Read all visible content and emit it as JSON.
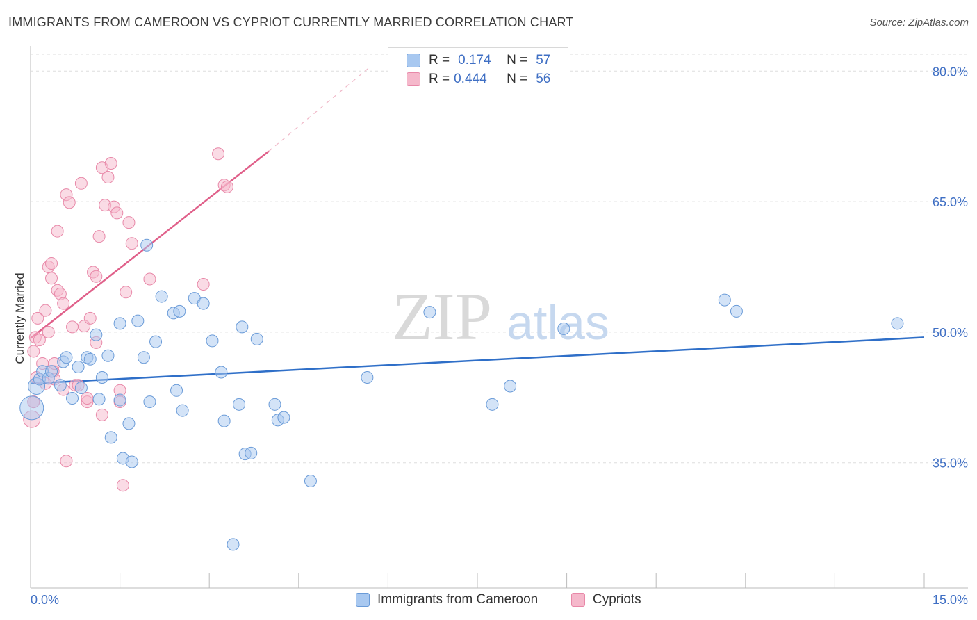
{
  "header": {
    "title": "IMMIGRANTS FROM CAMEROON VS CYPRIOT CURRENTLY MARRIED CORRELATION CHART",
    "source": "Source: ZipAtlas.com"
  },
  "watermark": {
    "zip": "ZIP",
    "atlas": "atlas"
  },
  "legend_top": {
    "rows": [
      {
        "r_label": "R =",
        "r_value": "0.174",
        "n_label": "N =",
        "n_value": "57",
        "color": "#a8c8f0"
      },
      {
        "r_label": "R =",
        "r_value": "0.444",
        "n_label": "N =",
        "n_value": "56",
        "color": "#f5b8cb"
      }
    ]
  },
  "legend_bottom": {
    "items": [
      {
        "label": "Immigrants from Cameroon",
        "color": "#a8c8f0"
      },
      {
        "label": "Cypriots",
        "color": "#f5b8cb"
      }
    ]
  },
  "colors": {
    "blue_fill": "#a8c8f0",
    "blue_stroke": "#6a9bd8",
    "blue_line": "#2f6fc8",
    "pink_fill": "#f5b8cb",
    "pink_stroke": "#e888a8",
    "pink_line": "#e0608a",
    "axis_label": "#3f6fc4",
    "grid": "#dddddd"
  },
  "chart_data": {
    "type": "scatter",
    "title": "IMMIGRANTS FROM CAMEROON VS CYPRIOT CURRENTLY MARRIED CORRELATION CHART",
    "xlabel": "",
    "ylabel": "Currently Married",
    "xlim": [
      0.0,
      15.0
    ],
    "ylim": [
      20.6,
      82.1
    ],
    "x_tick_labels": [
      "0.0%",
      "15.0%"
    ],
    "y_ticks": [
      35.0,
      50.0,
      65.0,
      80.0
    ],
    "y_tick_labels": [
      "35.0%",
      "50.0%",
      "65.0%",
      "80.0%"
    ],
    "grid": true,
    "series": [
      {
        "name": "Immigrants from Cameroon",
        "r": 0.174,
        "n": 57,
        "trend": {
          "x": [
            0.0,
            15.0
          ],
          "y": [
            44.1,
            49.4
          ]
        },
        "points": [
          {
            "x": 0.02,
            "y": 41.3,
            "s": "xl"
          },
          {
            "x": 0.1,
            "y": 43.8,
            "s": "l"
          },
          {
            "x": 0.15,
            "y": 44.6
          },
          {
            "x": 0.2,
            "y": 45.5
          },
          {
            "x": 0.3,
            "y": 44.7
          },
          {
            "x": 0.35,
            "y": 45.5
          },
          {
            "x": 0.5,
            "y": 43.9
          },
          {
            "x": 0.55,
            "y": 46.6
          },
          {
            "x": 0.6,
            "y": 47.1
          },
          {
            "x": 0.8,
            "y": 46.0
          },
          {
            "x": 0.85,
            "y": 43.6
          },
          {
            "x": 0.95,
            "y": 47.1
          },
          {
            "x": 1.0,
            "y": 46.9
          },
          {
            "x": 0.7,
            "y": 42.4
          },
          {
            "x": 1.1,
            "y": 49.7
          },
          {
            "x": 1.15,
            "y": 42.3
          },
          {
            "x": 1.2,
            "y": 44.8
          },
          {
            "x": 1.3,
            "y": 47.3
          },
          {
            "x": 1.35,
            "y": 37.9
          },
          {
            "x": 1.5,
            "y": 42.2
          },
          {
            "x": 1.5,
            "y": 51.0
          },
          {
            "x": 1.55,
            "y": 35.5
          },
          {
            "x": 1.65,
            "y": 39.5
          },
          {
            "x": 1.7,
            "y": 35.1
          },
          {
            "x": 1.8,
            "y": 51.3
          },
          {
            "x": 1.9,
            "y": 47.1
          },
          {
            "x": 1.95,
            "y": 60.0
          },
          {
            "x": 2.0,
            "y": 42.0
          },
          {
            "x": 2.1,
            "y": 48.9
          },
          {
            "x": 2.2,
            "y": 54.1
          },
          {
            "x": 2.4,
            "y": 52.2
          },
          {
            "x": 2.45,
            "y": 43.3
          },
          {
            "x": 2.5,
            "y": 52.4
          },
          {
            "x": 2.55,
            "y": 41.0
          },
          {
            "x": 2.75,
            "y": 53.9
          },
          {
            "x": 2.9,
            "y": 53.3
          },
          {
            "x": 3.05,
            "y": 49.0
          },
          {
            "x": 3.2,
            "y": 45.4
          },
          {
            "x": 3.25,
            "y": 39.8
          },
          {
            "x": 3.4,
            "y": 25.6
          },
          {
            "x": 3.5,
            "y": 41.7
          },
          {
            "x": 3.55,
            "y": 50.6
          },
          {
            "x": 3.6,
            "y": 36.0
          },
          {
            "x": 3.7,
            "y": 36.1
          },
          {
            "x": 3.8,
            "y": 49.2
          },
          {
            "x": 4.1,
            "y": 41.7
          },
          {
            "x": 4.15,
            "y": 39.9
          },
          {
            "x": 4.25,
            "y": 40.2
          },
          {
            "x": 4.7,
            "y": 32.9
          },
          {
            "x": 5.65,
            "y": 44.8
          },
          {
            "x": 6.7,
            "y": 52.3
          },
          {
            "x": 7.75,
            "y": 41.7
          },
          {
            "x": 8.05,
            "y": 43.8
          },
          {
            "x": 8.95,
            "y": 50.4
          },
          {
            "x": 11.65,
            "y": 53.7
          },
          {
            "x": 11.85,
            "y": 52.4
          },
          {
            "x": 14.55,
            "y": 51.0
          }
        ]
      },
      {
        "name": "Cypriots",
        "r": 0.444,
        "n": 56,
        "trend": {
          "x": [
            0.0,
            4.0
          ],
          "y": [
            49.3,
            70.8
          ]
        },
        "trend_ext": {
          "x": [
            4.0,
            5.7
          ],
          "y": [
            70.8,
            80.5
          ]
        },
        "points": [
          {
            "x": 0.02,
            "y": 40.0,
            "s": "l"
          },
          {
            "x": 0.05,
            "y": 42.0
          },
          {
            "x": 0.05,
            "y": 47.8
          },
          {
            "x": 0.08,
            "y": 49.4
          },
          {
            "x": 0.1,
            "y": 44.8
          },
          {
            "x": 0.12,
            "y": 51.6
          },
          {
            "x": 0.15,
            "y": 49.1
          },
          {
            "x": 0.2,
            "y": 46.4
          },
          {
            "x": 0.25,
            "y": 44.1
          },
          {
            "x": 0.25,
            "y": 52.5
          },
          {
            "x": 0.3,
            "y": 57.5
          },
          {
            "x": 0.3,
            "y": 50.0
          },
          {
            "x": 0.35,
            "y": 56.2
          },
          {
            "x": 0.35,
            "y": 57.9
          },
          {
            "x": 0.38,
            "y": 45.5
          },
          {
            "x": 0.4,
            "y": 46.4
          },
          {
            "x": 0.45,
            "y": 61.6
          },
          {
            "x": 0.45,
            "y": 54.8
          },
          {
            "x": 0.5,
            "y": 54.4
          },
          {
            "x": 0.55,
            "y": 53.3
          },
          {
            "x": 0.55,
            "y": 43.4
          },
          {
            "x": 0.6,
            "y": 65.8
          },
          {
            "x": 0.65,
            "y": 64.9
          },
          {
            "x": 0.7,
            "y": 50.6
          },
          {
            "x": 0.75,
            "y": 43.9
          },
          {
            "x": 0.6,
            "y": 35.2
          },
          {
            "x": 0.85,
            "y": 67.1
          },
          {
            "x": 0.9,
            "y": 50.7
          },
          {
            "x": 0.95,
            "y": 42.0
          },
          {
            "x": 0.95,
            "y": 42.4
          },
          {
            "x": 1.0,
            "y": 51.6
          },
          {
            "x": 1.05,
            "y": 56.9
          },
          {
            "x": 1.1,
            "y": 56.4
          },
          {
            "x": 1.1,
            "y": 48.8
          },
          {
            "x": 1.15,
            "y": 61.0
          },
          {
            "x": 1.2,
            "y": 68.9
          },
          {
            "x": 1.2,
            "y": 40.5
          },
          {
            "x": 1.25,
            "y": 64.6
          },
          {
            "x": 1.3,
            "y": 67.8
          },
          {
            "x": 1.35,
            "y": 69.4
          },
          {
            "x": 1.4,
            "y": 64.4
          },
          {
            "x": 1.45,
            "y": 63.7
          },
          {
            "x": 1.5,
            "y": 43.3
          },
          {
            "x": 1.5,
            "y": 42.0
          },
          {
            "x": 1.55,
            "y": 32.4
          },
          {
            "x": 1.6,
            "y": 54.6
          },
          {
            "x": 1.65,
            "y": 62.6
          },
          {
            "x": 1.7,
            "y": 60.2
          },
          {
            "x": 2.0,
            "y": 56.1
          },
          {
            "x": 2.9,
            "y": 55.5
          },
          {
            "x": 3.15,
            "y": 70.5
          },
          {
            "x": 3.25,
            "y": 66.9
          },
          {
            "x": 3.3,
            "y": 66.7
          },
          {
            "x": 0.05,
            "y": 42.0
          },
          {
            "x": 0.8,
            "y": 43.9
          },
          {
            "x": 0.4,
            "y": 44.6
          }
        ]
      }
    ]
  },
  "axes": {
    "ylabel": "Currently Married",
    "x_left": "0.0%",
    "x_right": "15.0%"
  }
}
